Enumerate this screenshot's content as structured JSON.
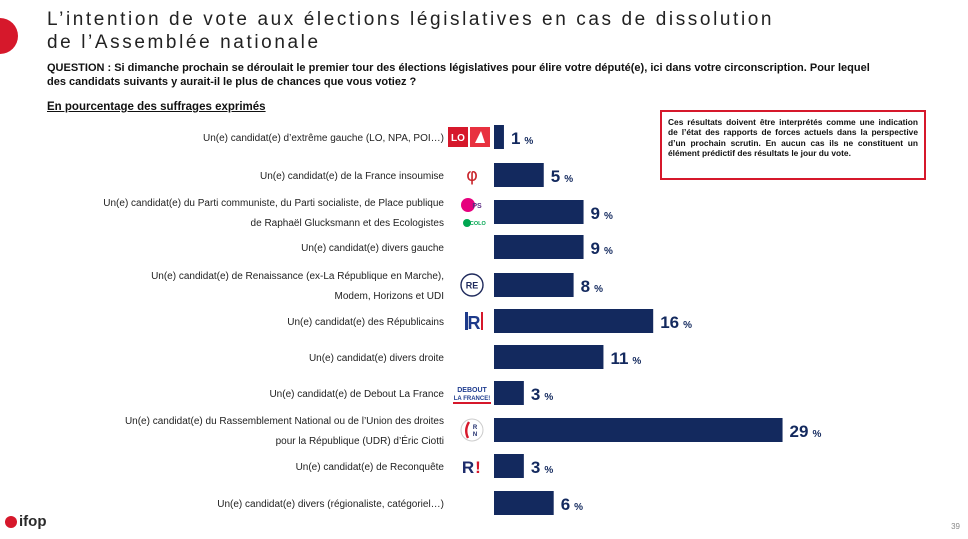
{
  "header": {
    "title_line1": "L’intention de vote aux élections législatives en cas de dissolution",
    "title_line2": "de l’Assemblée nationale",
    "question": "QUESTION : Si dimanche prochain se déroulait le premier tour des élections législatives pour élire votre député(e), ici dans votre circonscription. Pour lequel des candidats suivants y aurait-il le plus de chances que vous votiez ?",
    "subtitle": "En pourcentage des suffrages exprimés"
  },
  "note": "Ces résultats doivent être interprétés comme une indication de l’état des rapports de forces actuels dans la perspective d’un prochain scrutin. En aucun cas ils ne constituent un élément prédictif des résultats le jour du vote.",
  "footer": {
    "brand": "ifop",
    "page": "39"
  },
  "colors": {
    "bar": "#13295e",
    "accent": "#d6182b"
  },
  "chart_data": {
    "type": "bar",
    "orientation": "horizontal",
    "unit": "%",
    "categories": [
      [
        "Un(e) candidat(e) d’extrême gauche (LO, NPA, POI…)"
      ],
      [
        "Un(e) candidat(e) de la France insoumise"
      ],
      [
        "Un(e) candidat(e) du Parti communiste, du Parti socialiste, de Place publique",
        "de Raphaël Glucksmann et des Ecologistes"
      ],
      [
        "Un(e) candidat(e) divers gauche"
      ],
      [
        "Un(e) candidat(e) de Renaissance (ex-La République en Marche),",
        "Modem, Horizons et UDI"
      ],
      [
        "Un(e) candidat(e) des Républicains"
      ],
      [
        "Un(e) candidat(e) divers droite"
      ],
      [
        "Un(e) candidat(e) de Debout La France"
      ],
      [
        "Un(e) candidat(e) du Rassemblement National ou de l’Union des droites",
        "pour la République (UDR) d’Éric Ciotti"
      ],
      [
        "Un(e) candidat(e) de Reconquête"
      ],
      [
        "Un(e) candidat(e) divers (régionaliste, catégoriel…)"
      ]
    ],
    "values": [
      1,
      5,
      9,
      9,
      8,
      16,
      11,
      3,
      29,
      3,
      6
    ],
    "logos": [
      {
        "icon": "lo-npa-logo",
        "texts": [
          "LO"
        ]
      },
      {
        "icon": "lfi-phi-logo",
        "texts": [
          "φ"
        ]
      },
      {
        "icon": "ps-ecologistes-logo",
        "texts": [
          "PS",
          "ÉCOLO"
        ]
      },
      null,
      {
        "icon": "renaissance-logo",
        "texts": [
          "RE"
        ]
      },
      {
        "icon": "lr-logo",
        "texts": [
          "lR"
        ]
      },
      null,
      {
        "icon": "debout-la-france-logo",
        "texts": [
          "DEBOUT",
          "LA FRANCE!"
        ]
      },
      {
        "icon": "rn-logo",
        "texts": [
          "R",
          "N"
        ]
      },
      {
        "icon": "reconquete-logo",
        "texts": [
          "R!"
        ]
      },
      null
    ]
  }
}
